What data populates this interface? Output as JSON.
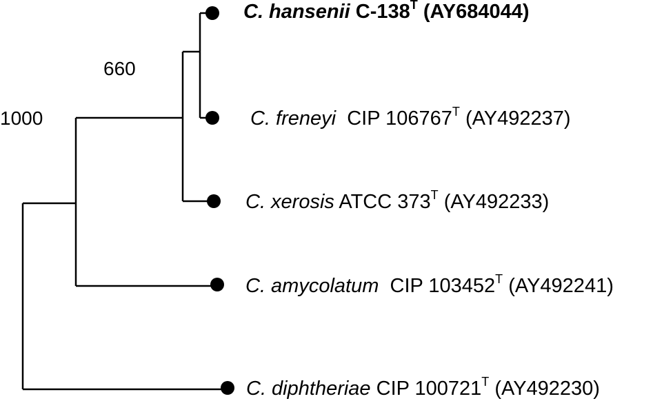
{
  "tree": {
    "bootstrap_values": [
      "660",
      "1000"
    ],
    "taxa": [
      {
        "species": "C. hansenii",
        "strain": "C-138",
        "type_mark": "T",
        "accession": "(AY684044)",
        "bold": true
      },
      {
        "species": "C. freneyi",
        "strain": "CIP 106767",
        "type_mark": "T",
        "accession": "(AY492237)",
        "bold": false
      },
      {
        "species": "C. xerosis",
        "strain": "ATCC 373",
        "type_mark": "T",
        "accession": "(AY492233)",
        "bold": false
      },
      {
        "species": "C. amycolatum",
        "strain": "CIP 103452",
        "type_mark": "T",
        "accession": "(AY492241)",
        "bold": false
      },
      {
        "species": "C. diphtheriae",
        "strain": "CIP 100721",
        "type_mark": "T",
        "accession": "(AY492230)",
        "bold": false
      }
    ],
    "line_color": "#000000",
    "node_color": "#000000"
  }
}
